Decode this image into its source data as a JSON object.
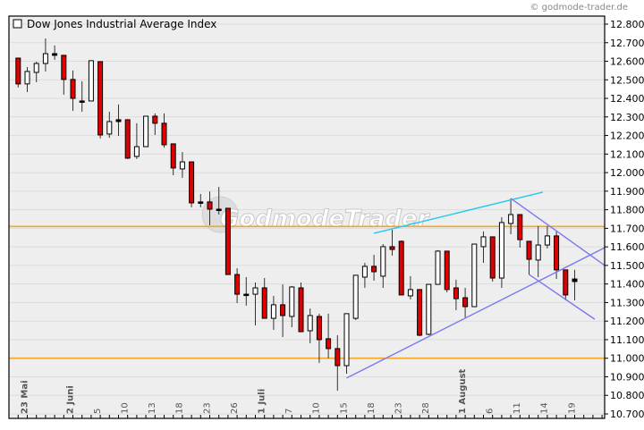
{
  "copyright": "© godmode-trader.de",
  "watermark": "GodmodeTrader",
  "chart_data": {
    "type": "candlestick",
    "title": "Dow Jones Industrial Average Index",
    "ylim": [
      10700,
      12800
    ],
    "ytick_step": 100,
    "ytick_format": "de",
    "grid": true,
    "colors": {
      "down": "#e00000",
      "up": "#ffffff",
      "outline": "#000000",
      "background": "#eeeeee",
      "grid": "#dcdcdc",
      "horizontal": "#f5a623",
      "channel": "#7a7af0",
      "trend": "#22c8f0"
    },
    "x_tick_labels": [
      {
        "index": 0,
        "label": "23 Mai",
        "major": true
      },
      {
        "index": 5,
        "label": "2 Juni",
        "major": true
      },
      {
        "index": 8,
        "label": "5"
      },
      {
        "index": 11,
        "label": "10"
      },
      {
        "index": 14,
        "label": "13"
      },
      {
        "index": 17,
        "label": "18"
      },
      {
        "index": 20,
        "label": "23"
      },
      {
        "index": 23,
        "label": "26"
      },
      {
        "index": 26,
        "label": "1 Juli",
        "major": true
      },
      {
        "index": 29,
        "label": "7"
      },
      {
        "index": 32,
        "label": "10"
      },
      {
        "index": 35,
        "label": "15"
      },
      {
        "index": 38,
        "label": "18"
      },
      {
        "index": 41,
        "label": "23"
      },
      {
        "index": 44,
        "label": "28"
      },
      {
        "index": 48,
        "label": "1 August",
        "major": true
      },
      {
        "index": 51,
        "label": "6"
      },
      {
        "index": 54,
        "label": "11"
      },
      {
        "index": 57,
        "label": "14"
      },
      {
        "index": 60,
        "label": "19"
      }
    ],
    "ohlc": [
      [
        12617,
        12617,
        12459,
        12478
      ],
      [
        12478,
        12569,
        12434,
        12545
      ],
      [
        12540,
        12598,
        12487,
        12588
      ],
      [
        12588,
        12723,
        12545,
        12641
      ],
      [
        12641,
        12685,
        12608,
        12632
      ],
      [
        12632,
        12632,
        12420,
        12502
      ],
      [
        12502,
        12550,
        12333,
        12400
      ],
      [
        12386,
        12492,
        12328,
        12386
      ],
      [
        12386,
        12603,
        12386,
        12603
      ],
      [
        12598,
        12598,
        12184,
        12203
      ],
      [
        12208,
        12328,
        12188,
        12275
      ],
      [
        12275,
        12367,
        12198,
        12285
      ],
      [
        12285,
        12285,
        12073,
        12078
      ],
      [
        12087,
        12266,
        12073,
        12140
      ],
      [
        12140,
        12304,
        12140,
        12304
      ],
      [
        12304,
        12319,
        12203,
        12266
      ],
      [
        12266,
        12319,
        12135,
        12150
      ],
      [
        12155,
        12155,
        11986,
        12025
      ],
      [
        12020,
        12111,
        11972,
        12058
      ],
      [
        12058,
        12058,
        11813,
        11837
      ],
      [
        11842,
        11885,
        11813,
        11842
      ],
      [
        11842,
        11899,
        11716,
        11803
      ],
      [
        11803,
        11923,
        11774,
        11803
      ],
      [
        11808,
        11808,
        11451,
        11451
      ],
      [
        11451,
        11485,
        11297,
        11345
      ],
      [
        11345,
        11437,
        11283,
        11345
      ],
      [
        11345,
        11408,
        11177,
        11379
      ],
      [
        11379,
        11432,
        11215,
        11215
      ],
      [
        11215,
        11336,
        11153,
        11288
      ],
      [
        11288,
        11398,
        11114,
        11230
      ],
      [
        11225,
        11389,
        11167,
        11384
      ],
      [
        11379,
        11408,
        11143,
        11143
      ],
      [
        11148,
        11268,
        11081,
        11230
      ],
      [
        11225,
        11240,
        10975,
        11100
      ],
      [
        11105,
        11240,
        10999,
        11052
      ],
      [
        11052,
        11124,
        10825,
        10960
      ],
      [
        10960,
        11240,
        10917,
        11240
      ],
      [
        11215,
        11447,
        11206,
        11447
      ],
      [
        11437,
        11514,
        11379,
        11495
      ],
      [
        11495,
        11557,
        11418,
        11466
      ],
      [
        11442,
        11615,
        11379,
        11601
      ],
      [
        11601,
        11692,
        11553,
        11586
      ],
      [
        11630,
        11634,
        11341,
        11341
      ],
      [
        11336,
        11442,
        11317,
        11370
      ],
      [
        11370,
        11370,
        11119,
        11124
      ],
      [
        11129,
        11398,
        11124,
        11398
      ],
      [
        11398,
        11582,
        11398,
        11577
      ],
      [
        11577,
        11577,
        11355,
        11370
      ],
      [
        11379,
        11423,
        11259,
        11321
      ],
      [
        11326,
        11379,
        11220,
        11278
      ],
      [
        11278,
        11615,
        11278,
        11615
      ],
      [
        11601,
        11683,
        11514,
        11654
      ],
      [
        11654,
        11654,
        11413,
        11432
      ],
      [
        11432,
        11760,
        11379,
        11731
      ],
      [
        11726,
        11861,
        11668,
        11774
      ],
      [
        11774,
        11774,
        11596,
        11639
      ],
      [
        11630,
        11630,
        11451,
        11533
      ],
      [
        11529,
        11712,
        11437,
        11610
      ],
      [
        11610,
        11712,
        11591,
        11659
      ],
      [
        11659,
        11683,
        11427,
        11476
      ],
      [
        11476,
        11476,
        11312,
        11341
      ],
      [
        11413,
        11476,
        11312,
        11427
      ]
    ],
    "horizontal_lines": [
      11000,
      11710
    ],
    "trend_lines": [
      {
        "kind": "trend",
        "from": [
          39,
          11673
        ],
        "to": [
          57.5,
          11895
        ]
      },
      {
        "kind": "channel",
        "from": [
          36,
          10893
        ],
        "to": [
          64.3,
          11596
        ]
      },
      {
        "kind": "channel",
        "from": [
          54,
          11861
        ],
        "to": [
          64.3,
          11500
        ]
      },
      {
        "kind": "channel",
        "from": [
          56,
          11451
        ],
        "to": [
          63.2,
          11210
        ]
      }
    ]
  }
}
